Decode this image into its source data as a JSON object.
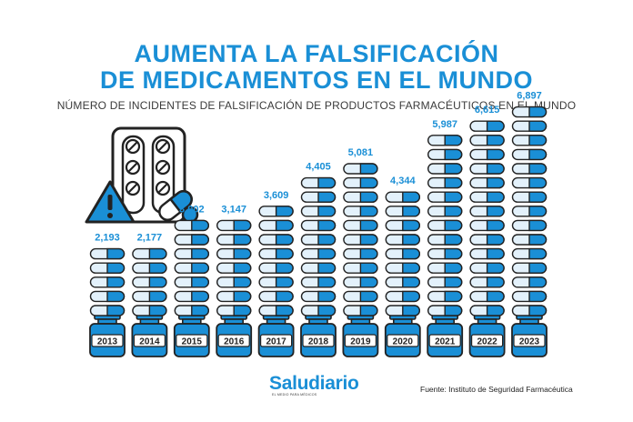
{
  "header": {
    "title_line1": "AUMENTA LA FALSIFICACIÓN",
    "title_line2": "DE MEDICAMENTOS EN EL MUNDO",
    "subtitle": "NÚMERO DE INCIDENTES DE FALSIFICACIÓN DE PRODUCTOS FARMACÉUTICOS EN EL MUNDO"
  },
  "footer": {
    "brand": "Saludiario",
    "tagline": "EL MEDIO PARA MÉDICOS",
    "source": "Fuente: Instituto de Seguridad Farmacéutica"
  },
  "icons": [
    "pill-blister-icon",
    "warning-triangle-icon",
    "capsule-icon"
  ],
  "colors": {
    "accent": "#1a8fd6",
    "light": "#e3f1fb",
    "dark": "#222222"
  },
  "chart_data": {
    "type": "bar",
    "categories": [
      "2013",
      "2014",
      "2015",
      "2016",
      "2017",
      "2018",
      "2019",
      "2020",
      "2021",
      "2022",
      "2023"
    ],
    "values": [
      2193,
      2177,
      3002,
      3147,
      3609,
      4405,
      5081,
      4344,
      5987,
      6615,
      6897
    ],
    "value_labels": [
      "2,193",
      "2,177",
      "3,002",
      "3,147",
      "3,609",
      "4,405",
      "5,081",
      "4,344",
      "5,987",
      "6,615",
      "6,897"
    ]
  }
}
